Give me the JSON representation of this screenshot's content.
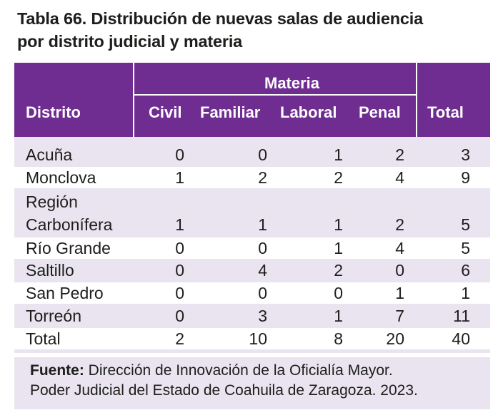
{
  "title": {
    "line1": "Tabla 66. Distribución de nuevas salas de audiencia",
    "line2": "por distrito judicial y materia"
  },
  "table": {
    "header": {
      "group": "Materia",
      "distrito": "Distrito",
      "civil": "Civil",
      "familiar": "Familiar",
      "laboral": "Laboral",
      "penal": "Penal",
      "total": "Total"
    },
    "rows": [
      {
        "distrito": "Acuña",
        "civil": "0",
        "familiar": "0",
        "laboral": "1",
        "penal": "2",
        "total": "3"
      },
      {
        "distrito": "Monclova",
        "civil": "1",
        "familiar": "2",
        "laboral": "2",
        "penal": "4",
        "total": "9"
      },
      {
        "distrito_line1": "Región",
        "distrito": "Carbonífera",
        "civil": "1",
        "familiar": "1",
        "laboral": "1",
        "penal": "2",
        "total": "5"
      },
      {
        "distrito": "Río Grande",
        "civil": "0",
        "familiar": "0",
        "laboral": "1",
        "penal": "4",
        "total": "5"
      },
      {
        "distrito": "Saltillo",
        "civil": "0",
        "familiar": "4",
        "laboral": "2",
        "penal": "0",
        "total": "6"
      },
      {
        "distrito": "San Pedro",
        "civil": "0",
        "familiar": "0",
        "laboral": "0",
        "penal": "1",
        "total": "1"
      },
      {
        "distrito": "Torreón",
        "civil": "0",
        "familiar": "3",
        "laboral": "1",
        "penal": "7",
        "total": "11"
      },
      {
        "distrito": "Total",
        "civil": "2",
        "familiar": "10",
        "laboral": "8",
        "penal": "20",
        "total": "40"
      }
    ]
  },
  "source": {
    "label": "Fuente:",
    "line1_rest": " Dirección de Innovación de la Oficialía Mayor.",
    "line2": "Poder Judicial del Estado de Coahuila de Zaragoza. 2023."
  },
  "colors": {
    "header_bg": "#6f2c91",
    "body_bg": "#e9e4ef",
    "stripe": "#ffffff"
  }
}
